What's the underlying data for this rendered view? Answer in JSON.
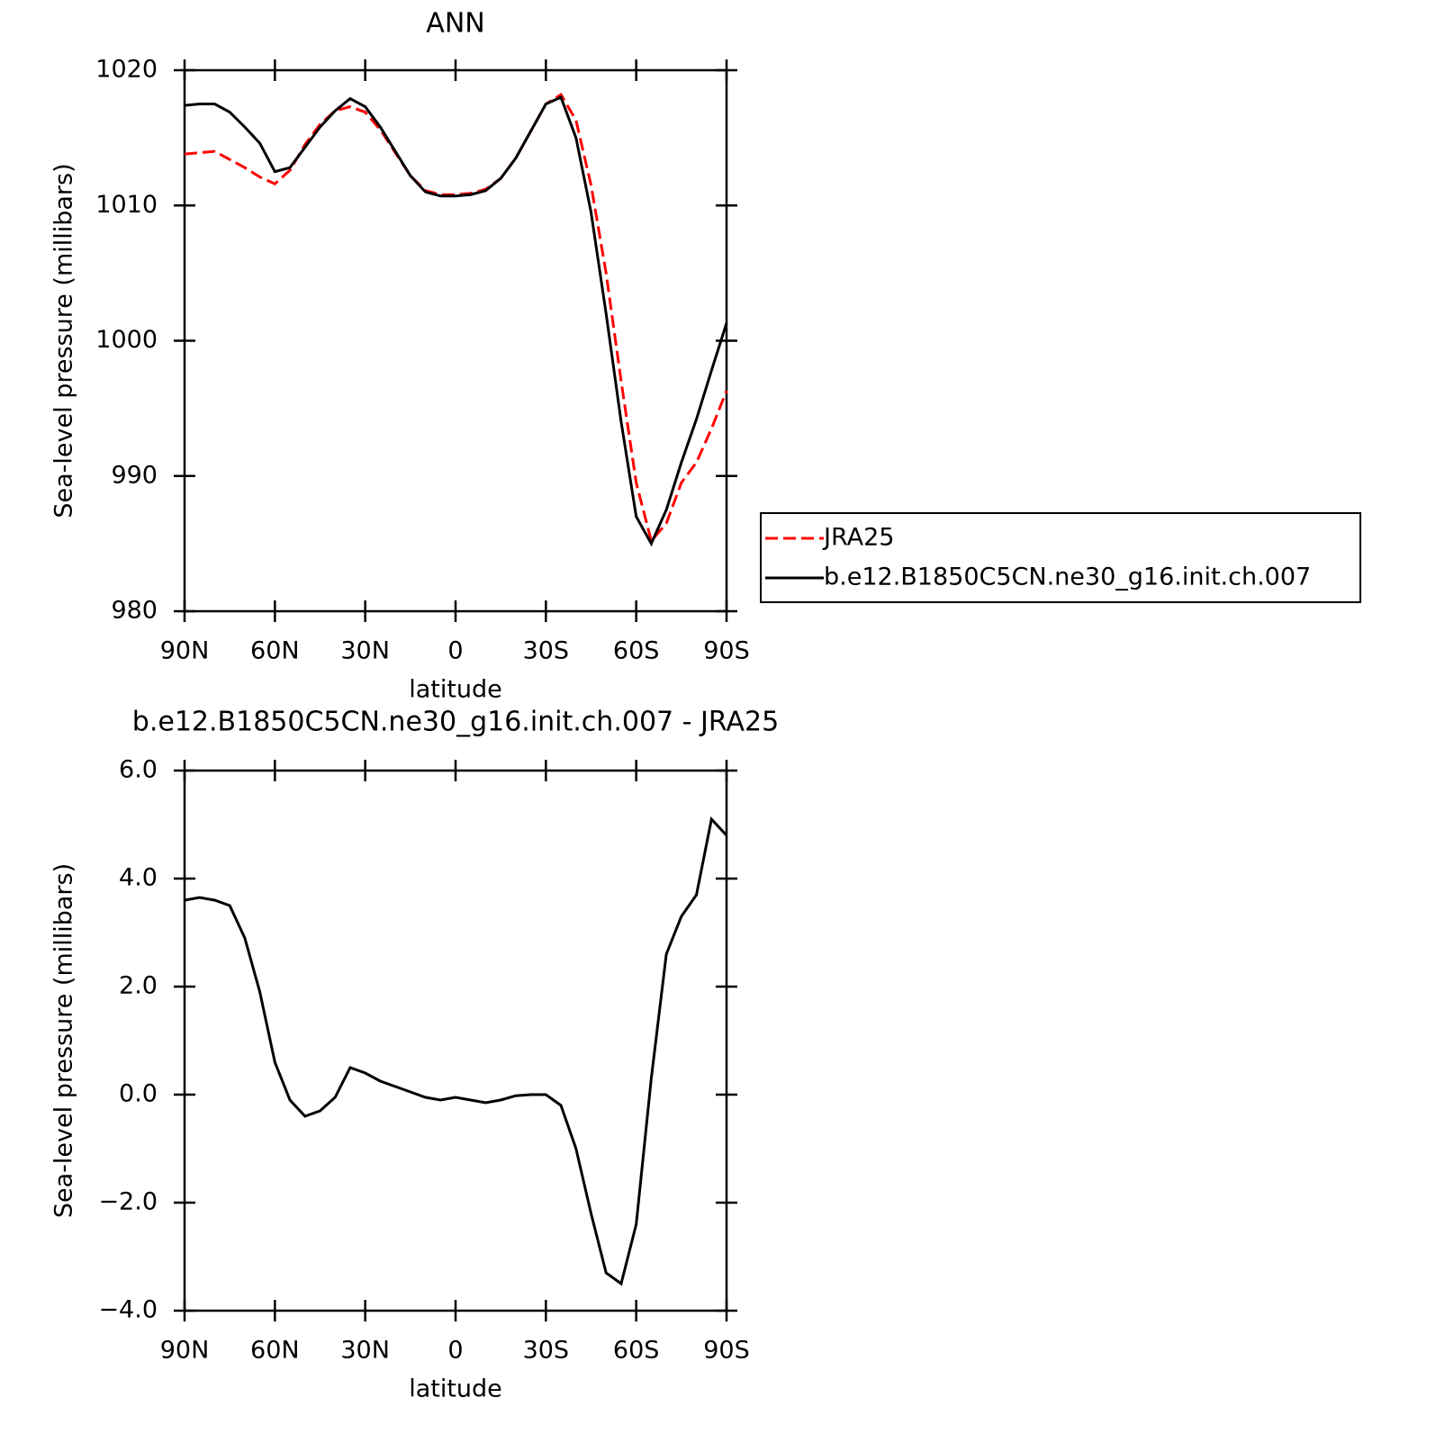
{
  "chart_data": [
    {
      "type": "line",
      "title": "ANN",
      "xlabel": "latitude",
      "ylabel": "Sea-level pressure (millibars)",
      "x": [
        90,
        85,
        80,
        75,
        70,
        65,
        60,
        55,
        50,
        45,
        40,
        35,
        30,
        25,
        20,
        15,
        10,
        5,
        0,
        -5,
        -10,
        -15,
        -20,
        -25,
        -30,
        -35,
        -40,
        -45,
        -50,
        -55,
        -60,
        -65,
        -70,
        -75,
        -80,
        -85,
        -90
      ],
      "xlim": [
        90,
        -90
      ],
      "xticks": [
        {
          "value": 90,
          "label": "90N"
        },
        {
          "value": 60,
          "label": "60N"
        },
        {
          "value": 30,
          "label": "30N"
        },
        0,
        {
          "value": -30,
          "label": "30S"
        },
        {
          "value": -60,
          "label": "60S"
        },
        {
          "value": -90,
          "label": "90S"
        }
      ],
      "ylim": [
        980,
        1020
      ],
      "yticks": [
        980,
        990,
        1000,
        1010,
        1020
      ],
      "legend": "right",
      "series": [
        {
          "name": "JRA25",
          "color": "#ff0000",
          "line_style": "dashed",
          "values": [
            1013.8,
            1013.9,
            1014.0,
            1013.4,
            1012.8,
            1012.1,
            1011.6,
            1012.6,
            1014.5,
            1016.0,
            1017.0,
            1017.3,
            1016.9,
            1015.6,
            1013.9,
            1012.2,
            1011.1,
            1010.8,
            1010.8,
            1010.9,
            1011.2,
            1012.0,
            1013.5,
            1015.5,
            1017.5,
            1018.2,
            1016.3,
            1011.5,
            1005.0,
            997.0,
            989.5,
            985.2,
            986.5,
            989.5,
            991.0,
            993.5,
            996.3
          ]
        },
        {
          "name": "b.e12.B1850C5CN.ne30_g16.init.ch.007",
          "color": "#000000",
          "line_style": "solid",
          "values": [
            1017.4,
            1017.5,
            1017.5,
            1016.9,
            1015.8,
            1014.6,
            1012.5,
            1012.8,
            1014.3,
            1015.8,
            1017.0,
            1017.9,
            1017.3,
            1015.8,
            1014.0,
            1012.2,
            1011.0,
            1010.7,
            1010.7,
            1010.8,
            1011.1,
            1012.0,
            1013.5,
            1015.5,
            1017.5,
            1018.0,
            1015.0,
            1009.5,
            1002.0,
            994.0,
            987.0,
            985.0,
            987.5,
            991.0,
            994.2,
            997.8,
            1001.3
          ]
        }
      ]
    },
    {
      "type": "line",
      "title": "b.e12.B1850C5CN.ne30_g16.init.ch.007 - JRA25",
      "xlabel": "latitude",
      "ylabel": "Sea-level pressure (millibars)",
      "x": [
        90,
        85,
        80,
        75,
        70,
        65,
        60,
        55,
        50,
        45,
        40,
        35,
        30,
        25,
        20,
        15,
        10,
        5,
        0,
        -5,
        -10,
        -15,
        -20,
        -25,
        -30,
        -35,
        -40,
        -45,
        -50,
        -55,
        -60,
        -65,
        -70,
        -75,
        -80,
        -85,
        -90
      ],
      "xlim": [
        90,
        -90
      ],
      "xticks": [
        {
          "value": 90,
          "label": "90N"
        },
        {
          "value": 60,
          "label": "60N"
        },
        {
          "value": 30,
          "label": "30N"
        },
        0,
        {
          "value": -30,
          "label": "30S"
        },
        {
          "value": -60,
          "label": "60S"
        },
        {
          "value": -90,
          "label": "90S"
        }
      ],
      "ylim": [
        -4,
        6
      ],
      "yticks": [
        {
          "value": -4,
          "label": "−4.0"
        },
        {
          "value": -2,
          "label": "−2.0"
        },
        {
          "value": 0,
          "label": "0.0"
        },
        {
          "value": 2,
          "label": "2.0"
        },
        {
          "value": 4,
          "label": "4.0"
        },
        {
          "value": 6,
          "label": "6.0"
        }
      ],
      "series": [
        {
          "color": "#000000",
          "line_style": "solid",
          "values": [
            3.6,
            3.65,
            3.6,
            3.5,
            2.9,
            1.9,
            0.6,
            -0.1,
            -0.4,
            -0.3,
            -0.05,
            0.5,
            0.4,
            0.25,
            0.15,
            0.05,
            -0.05,
            -0.1,
            -0.05,
            -0.1,
            -0.15,
            -0.1,
            -0.02,
            0.0,
            0.0,
            -0.2,
            -1.0,
            -2.2,
            -3.3,
            -3.5,
            -2.4,
            0.3,
            2.6,
            3.3,
            3.7,
            5.1,
            4.8
          ]
        }
      ]
    }
  ]
}
